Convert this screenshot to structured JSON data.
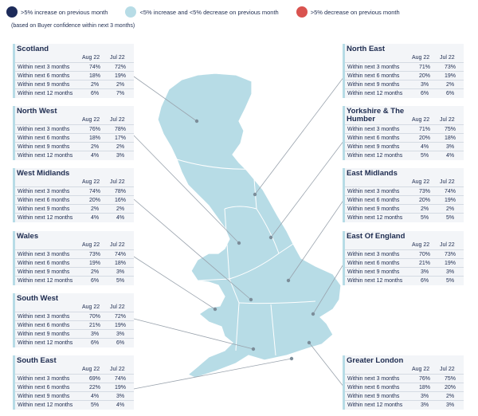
{
  "legend": {
    "items": [
      {
        "label": ">5% increase on previous month",
        "color": "#1d2b5a"
      },
      {
        "label": "<5% increase and <5% decrease on previous month",
        "color": "#b7dce6"
      },
      {
        "label": ">5% decrease on previous month",
        "color": "#d9534f"
      }
    ]
  },
  "note": "(based on Buyer confidence within next 3 months)",
  "map_fill": "#b7dce6",
  "columns": [
    "Aug 22",
    "Jul 22"
  ],
  "row_labels": [
    "Within next 3 months",
    "Within next 6 months",
    "Within next 9 months",
    "Within next 12 months"
  ],
  "regions": [
    {
      "name": "Scotland",
      "rows": [
        [
          "74%",
          "72%"
        ],
        [
          "18%",
          "19%"
        ],
        [
          "2%",
          "2%"
        ],
        [
          "6%",
          "7%"
        ]
      ]
    },
    {
      "name": "North West",
      "rows": [
        [
          "76%",
          "78%"
        ],
        [
          "18%",
          "17%"
        ],
        [
          "2%",
          "2%"
        ],
        [
          "4%",
          "3%"
        ]
      ]
    },
    {
      "name": "West Midlands",
      "rows": [
        [
          "74%",
          "78%"
        ],
        [
          "20%",
          "16%"
        ],
        [
          "2%",
          "2%"
        ],
        [
          "4%",
          "4%"
        ]
      ]
    },
    {
      "name": "Wales",
      "rows": [
        [
          "73%",
          "74%"
        ],
        [
          "19%",
          "18%"
        ],
        [
          "2%",
          "3%"
        ],
        [
          "6%",
          "5%"
        ]
      ]
    },
    {
      "name": "South West",
      "rows": [
        [
          "70%",
          "72%"
        ],
        [
          "21%",
          "19%"
        ],
        [
          "3%",
          "3%"
        ],
        [
          "6%",
          "6%"
        ]
      ]
    },
    {
      "name": "South East",
      "rows": [
        [
          "69%",
          "74%"
        ],
        [
          "22%",
          "19%"
        ],
        [
          "4%",
          "3%"
        ],
        [
          "5%",
          "4%"
        ]
      ]
    },
    {
      "name": "North East",
      "rows": [
        [
          "71%",
          "73%"
        ],
        [
          "20%",
          "19%"
        ],
        [
          "3%",
          "2%"
        ],
        [
          "6%",
          "6%"
        ]
      ]
    },
    {
      "name": "Yorkshire & The Humber",
      "rows": [
        [
          "71%",
          "75%"
        ],
        [
          "20%",
          "18%"
        ],
        [
          "4%",
          "3%"
        ],
        [
          "5%",
          "4%"
        ]
      ]
    },
    {
      "name": "East Midlands",
      "rows": [
        [
          "73%",
          "74%"
        ],
        [
          "20%",
          "19%"
        ],
        [
          "2%",
          "2%"
        ],
        [
          "5%",
          "5%"
        ]
      ]
    },
    {
      "name": "East Of England",
      "rows": [
        [
          "70%",
          "73%"
        ],
        [
          "21%",
          "19%"
        ],
        [
          "3%",
          "3%"
        ],
        [
          "6%",
          "5%"
        ]
      ]
    },
    {
      "name": "Greater London",
      "rows": [
        [
          "76%",
          "75%"
        ],
        [
          "18%",
          "20%"
        ],
        [
          "3%",
          "2%"
        ],
        [
          "3%",
          "3%"
        ]
      ]
    }
  ]
}
